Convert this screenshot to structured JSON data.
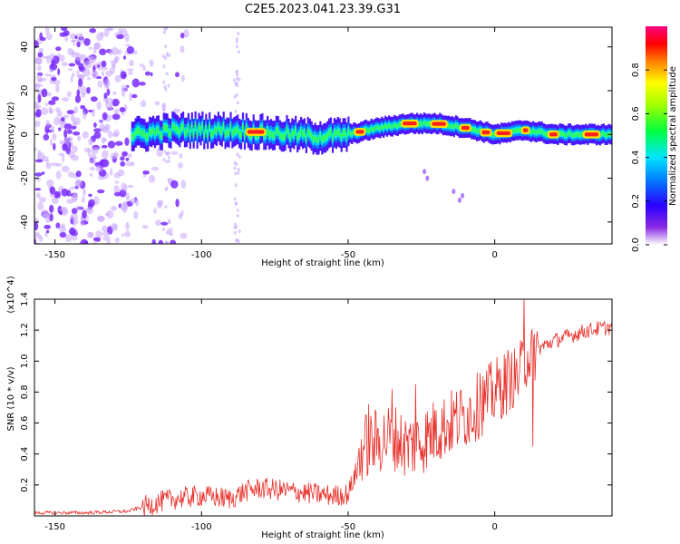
{
  "title": "C2E5.2023.041.23.39.G31",
  "colors": {
    "snr_line": "#e8302a",
    "axis": "#000000",
    "noise_purple": "#7a2bff",
    "noise_light": "#c9a6ff"
  },
  "chart_data": [
    {
      "type": "heatmap",
      "xlabel": "Height of straight line (km)",
      "ylabel": "Frequency (Hz)",
      "xlim": [
        -157,
        40
      ],
      "ylim": [
        -50,
        49
      ],
      "x_ticks": [
        -150,
        -100,
        -50,
        0
      ],
      "y_ticks": [
        -40,
        -20,
        0,
        20,
        40
      ],
      "grid": false,
      "colorbar": {
        "label": "Normalized spectral amplitude",
        "range": [
          0,
          1
        ],
        "ticks": [
          "0.0",
          "0.2",
          "0.4",
          "0.6",
          "0.8"
        ],
        "palette": "rainbow (purple-blue-cyan-green-yellow-orange-red-magenta)"
      },
      "ridge_center_freq": [
        {
          "x": -122,
          "y": 0
        },
        {
          "x": -110,
          "y": 2
        },
        {
          "x": -100,
          "y": 2
        },
        {
          "x": -90,
          "y": 2
        },
        {
          "x": -80,
          "y": 1
        },
        {
          "x": -70,
          "y": 0
        },
        {
          "x": -60,
          "y": -1
        },
        {
          "x": -50,
          "y": 0
        },
        {
          "x": -40,
          "y": 3
        },
        {
          "x": -30,
          "y": 5
        },
        {
          "x": -20,
          "y": 5
        },
        {
          "x": -10,
          "y": 3
        },
        {
          "x": 0,
          "y": 0
        },
        {
          "x": 10,
          "y": 2
        },
        {
          "x": 20,
          "y": 0
        },
        {
          "x": 30,
          "y": 0
        },
        {
          "x": 40,
          "y": 0
        }
      ],
      "noise_region_x": [
        -157,
        -110
      ]
    },
    {
      "type": "line",
      "xlabel": "Height of straight line (km)",
      "ylabel": "SNR (10 * v/v)",
      "y_multiplier": "(x10^4)",
      "xlim": [
        -157,
        40
      ],
      "ylim": [
        0,
        1.4
      ],
      "x_ticks": [
        -150,
        -100,
        -50,
        0
      ],
      "y_ticks": [
        "0.2",
        "0.4",
        "0.6",
        "0.8",
        "1.0",
        "1.2",
        "1.4"
      ],
      "grid": false,
      "series": [
        {
          "x": [
            -157,
            -140,
            -125,
            -118,
            -110,
            -100,
            -95,
            -90,
            -85,
            -80,
            -75,
            -70,
            -65,
            -60,
            -55,
            -50,
            -47,
            -45,
            -40,
            -35,
            -30,
            -25,
            -20,
            -15,
            -10,
            -5,
            0,
            5,
            8,
            10,
            12,
            15,
            20,
            25,
            30,
            35,
            40
          ],
          "y": [
            0.02,
            0.02,
            0.03,
            0.07,
            0.11,
            0.13,
            0.12,
            0.11,
            0.16,
            0.18,
            0.17,
            0.16,
            0.15,
            0.14,
            0.13,
            0.14,
            0.3,
            0.45,
            0.48,
            0.52,
            0.45,
            0.48,
            0.55,
            0.6,
            0.65,
            0.72,
            0.8,
            0.88,
            0.9,
            1.0,
            1.05,
            1.08,
            1.13,
            1.16,
            1.19,
            1.21,
            1.22
          ]
        }
      ],
      "spikes": [
        {
          "x": -43,
          "y": 0.72
        },
        {
          "x": -35,
          "y": 0.82
        },
        {
          "x": -27,
          "y": 0.85
        },
        {
          "x": -20,
          "y": 0.68
        },
        {
          "x": -13,
          "y": 0.8
        },
        {
          "x": -5,
          "y": 0.92
        },
        {
          "x": 5,
          "y": 0.95
        },
        {
          "x": 10,
          "y": 1.4
        },
        {
          "x": 13,
          "y": 0.45
        }
      ]
    }
  ]
}
